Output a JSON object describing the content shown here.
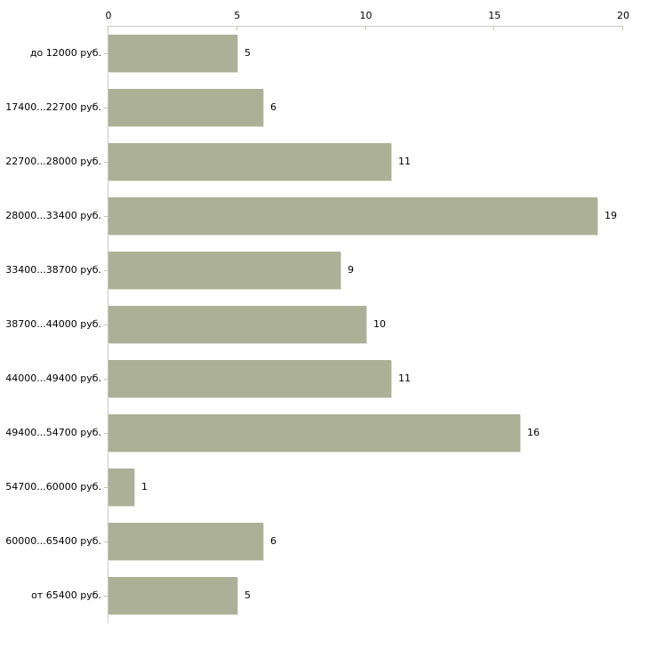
{
  "chart_data": {
    "type": "bar",
    "orientation": "horizontal",
    "title": "",
    "xlabel": "",
    "ylabel": "",
    "categories": [
      "до 12000 руб.",
      "17400...22700 руб.",
      "22700...28000 руб.",
      "28000...33400 руб.",
      "33400...38700 руб.",
      "38700...44000 руб.",
      "44000...49400 руб.",
      "49400...54700 руб.",
      "54700...60000 руб.",
      "60000...65400 руб.",
      "от 65400 руб."
    ],
    "values": [
      5,
      6,
      11,
      19,
      9,
      10,
      11,
      16,
      1,
      6,
      5
    ],
    "xticks": [
      0,
      5,
      10,
      15,
      20
    ],
    "xlim": [
      0,
      20
    ],
    "grid": false,
    "legend": false,
    "axis_position": "top",
    "colors": {
      "bar_fill": "#abb096",
      "bar_edge_highlight": "#e1e1d6",
      "axis_line": "#c8c8c8",
      "tick_mark": "#c8c7a0",
      "text": "#000000",
      "background": "#ffffff"
    }
  }
}
